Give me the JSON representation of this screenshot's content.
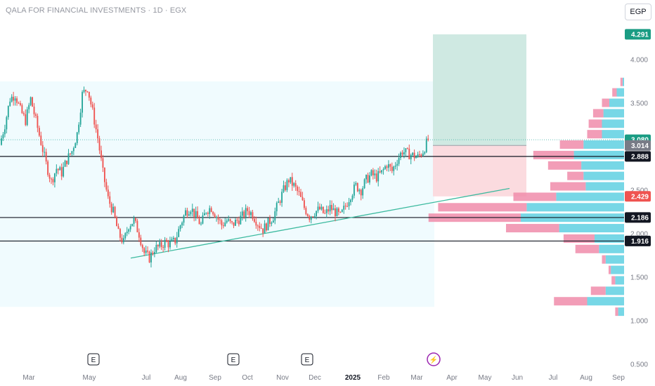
{
  "header": {
    "title": "QALA FOR FINANCIAL INVESTMENTS · 1D · EGX",
    "currency": "EGP"
  },
  "colors": {
    "up": "#26a69a",
    "down": "#ef5350",
    "target_zone": "#cfe9e2",
    "stop_zone": "#fbdbdf",
    "range_box": "#f0fbfe",
    "vp_blue": "#5fd0e2",
    "vp_pink": "#f08caa",
    "trend_line": "#3cba9f"
  },
  "chart_data": {
    "type": "candlestick",
    "y_axis": {
      "ylim": [
        0.45,
        4.45
      ],
      "ticks": [
        "0.500",
        "1.000",
        "1.500",
        "2.000",
        "2.500",
        "3.500",
        "4.000"
      ]
    },
    "x_axis": {
      "ticks": [
        "Mar",
        "May",
        "Jul",
        "Aug",
        "Sep",
        "Oct",
        "Nov",
        "Dec",
        "2025",
        "Feb",
        "Mar",
        "Apr",
        "May",
        "Jun",
        "Jul",
        "Aug",
        "Sep"
      ],
      "bold_tick": "2025"
    },
    "price_series": [
      3.02,
      3.25,
      3.55,
      3.6,
      3.42,
      3.3,
      3.55,
      3.3,
      3.05,
      2.8,
      2.6,
      2.75,
      2.7,
      2.85,
      2.95,
      3.15,
      3.6,
      3.68,
      3.4,
      3.1,
      2.7,
      2.4,
      2.25,
      2.0,
      1.9,
      2.1,
      2.15,
      2.0,
      1.78,
      1.72,
      1.83,
      1.85,
      1.9,
      1.88,
      1.92,
      2.1,
      2.25,
      2.3,
      2.2,
      2.1,
      2.27,
      2.3,
      2.2,
      2.1,
      2.15,
      2.1,
      2.15,
      2.2,
      2.27,
      2.22,
      2.12,
      2.05,
      2.12,
      2.2,
      2.35,
      2.5,
      2.62,
      2.55,
      2.45,
      2.3,
      2.2,
      2.25,
      2.28,
      2.22,
      2.3,
      2.25,
      2.2,
      2.32,
      2.45,
      2.55,
      2.5,
      2.62,
      2.68,
      2.65,
      2.7,
      2.8,
      2.72,
      2.85,
      2.95,
      2.92,
      2.9,
      2.88,
      2.95,
      3.08
    ],
    "horizontal_levels": [
      2.888,
      2.186,
      1.916
    ],
    "trend_line": {
      "from": [
        1.72
      ],
      "to": [
        2.52
      ]
    },
    "position": {
      "entry": 3.014,
      "target": 4.291,
      "stop": 2.429
    },
    "price_labels": [
      {
        "value": 4.291,
        "text": "4.291",
        "kind": "target"
      },
      {
        "value": 3.08,
        "text": "3.080",
        "kind": "last"
      },
      {
        "value": 3.014,
        "text": "3.014",
        "kind": "entry"
      },
      {
        "value": 2.888,
        "text": "2.888",
        "kind": "level"
      },
      {
        "value": 2.429,
        "text": "2.429",
        "kind": "stop"
      },
      {
        "value": 2.186,
        "text": "2.186",
        "kind": "level"
      },
      {
        "value": 1.916,
        "text": "1.916",
        "kind": "level"
      }
    ],
    "event_markers": [
      {
        "text": "E",
        "kind": "earnings"
      },
      {
        "text": "E",
        "kind": "earnings"
      },
      {
        "text": "E",
        "kind": "earnings"
      },
      {
        "text": "⚡",
        "kind": "split"
      }
    ],
    "volume_profile": [
      {
        "price": 3.74,
        "up": 2,
        "down": 3
      },
      {
        "price": 3.62,
        "up": 10,
        "down": 6
      },
      {
        "price": 3.5,
        "up": 20,
        "down": 10
      },
      {
        "price": 3.38,
        "up": 28,
        "down": 14
      },
      {
        "price": 3.26,
        "up": 30,
        "down": 18
      },
      {
        "price": 3.14,
        "up": 30,
        "down": 20
      },
      {
        "price": 3.02,
        "up": 55,
        "down": 32
      },
      {
        "price": 2.9,
        "up": 68,
        "down": 55
      },
      {
        "price": 2.78,
        "up": 58,
        "down": 45
      },
      {
        "price": 2.66,
        "up": 55,
        "down": 22
      },
      {
        "price": 2.54,
        "up": 52,
        "down": 48
      },
      {
        "price": 2.42,
        "up": 92,
        "down": 58
      },
      {
        "price": 2.3,
        "up": 132,
        "down": 120
      },
      {
        "price": 2.18,
        "up": 140,
        "down": 125
      },
      {
        "price": 2.06,
        "up": 88,
        "down": 72
      },
      {
        "price": 1.94,
        "up": 40,
        "down": 42
      },
      {
        "price": 1.82,
        "up": 34,
        "down": 32
      },
      {
        "price": 1.7,
        "up": 25,
        "down": 5
      },
      {
        "price": 1.58,
        "up": 18,
        "down": 3
      },
      {
        "price": 1.46,
        "up": 12,
        "down": 5
      },
      {
        "price": 1.34,
        "up": 25,
        "down": 20
      },
      {
        "price": 1.22,
        "up": 50,
        "down": 45
      },
      {
        "price": 1.1,
        "up": 8,
        "down": 4
      }
    ]
  }
}
